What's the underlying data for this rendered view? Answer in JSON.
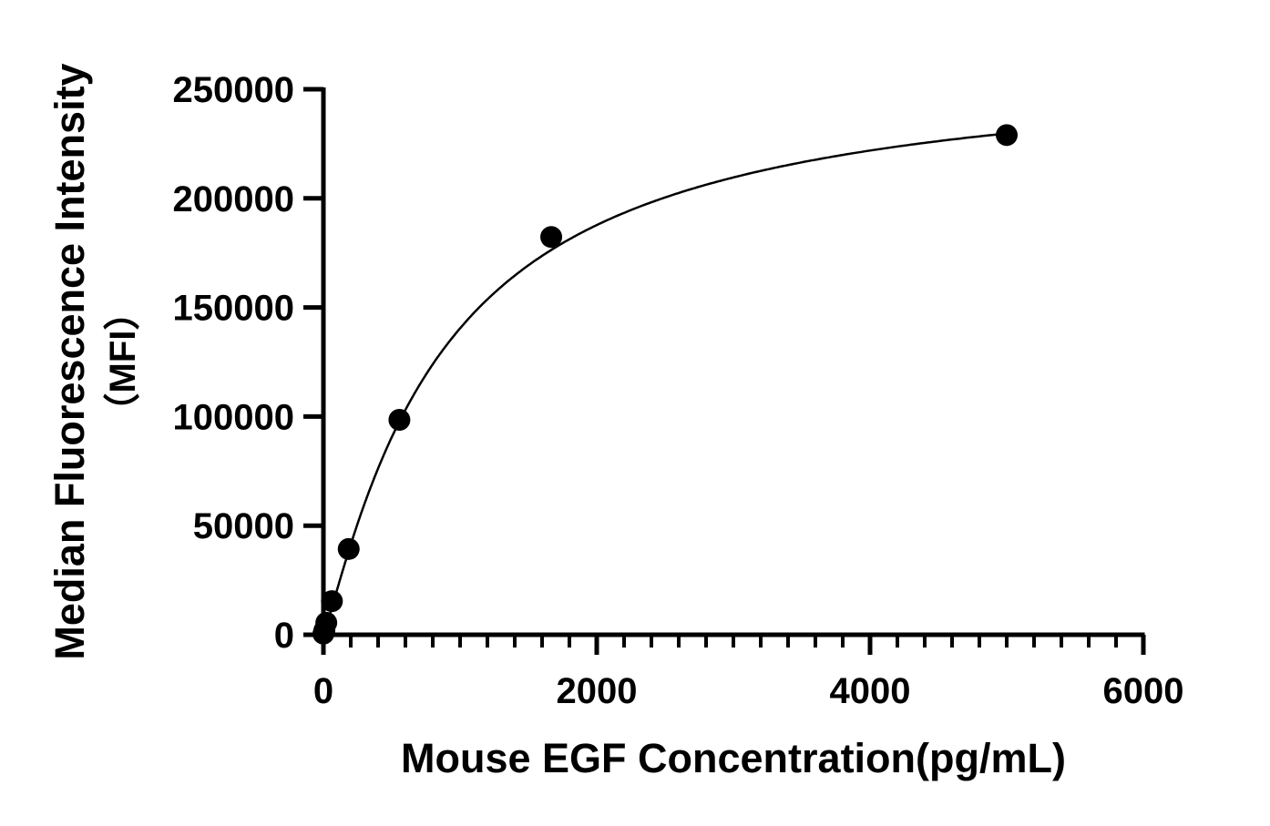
{
  "chart_data": {
    "type": "scatter",
    "title": "",
    "xlabel": "Mouse EGF Concentration(pg/mL)",
    "ylabel_line1": "Median Fluorescence Intensity",
    "ylabel_line2": "（MFI）",
    "xlim": [
      0,
      6000
    ],
    "ylim": [
      0,
      250000
    ],
    "xticks": [
      0,
      2000,
      4000,
      6000
    ],
    "yticks": [
      0,
      50000,
      100000,
      150000,
      200000,
      250000
    ],
    "x_minor_step": 200,
    "grid": false,
    "fit_curve": true,
    "points": [
      {
        "x": 0,
        "y": 500
      },
      {
        "x": 7,
        "y": 2000
      },
      {
        "x": 21,
        "y": 5500
      },
      {
        "x": 62,
        "y": 15400
      },
      {
        "x": 185,
        "y": 39300
      },
      {
        "x": 556,
        "y": 98500
      },
      {
        "x": 1667,
        "y": 182300
      },
      {
        "x": 5000,
        "y": 229000
      }
    ],
    "color": "#000000"
  }
}
